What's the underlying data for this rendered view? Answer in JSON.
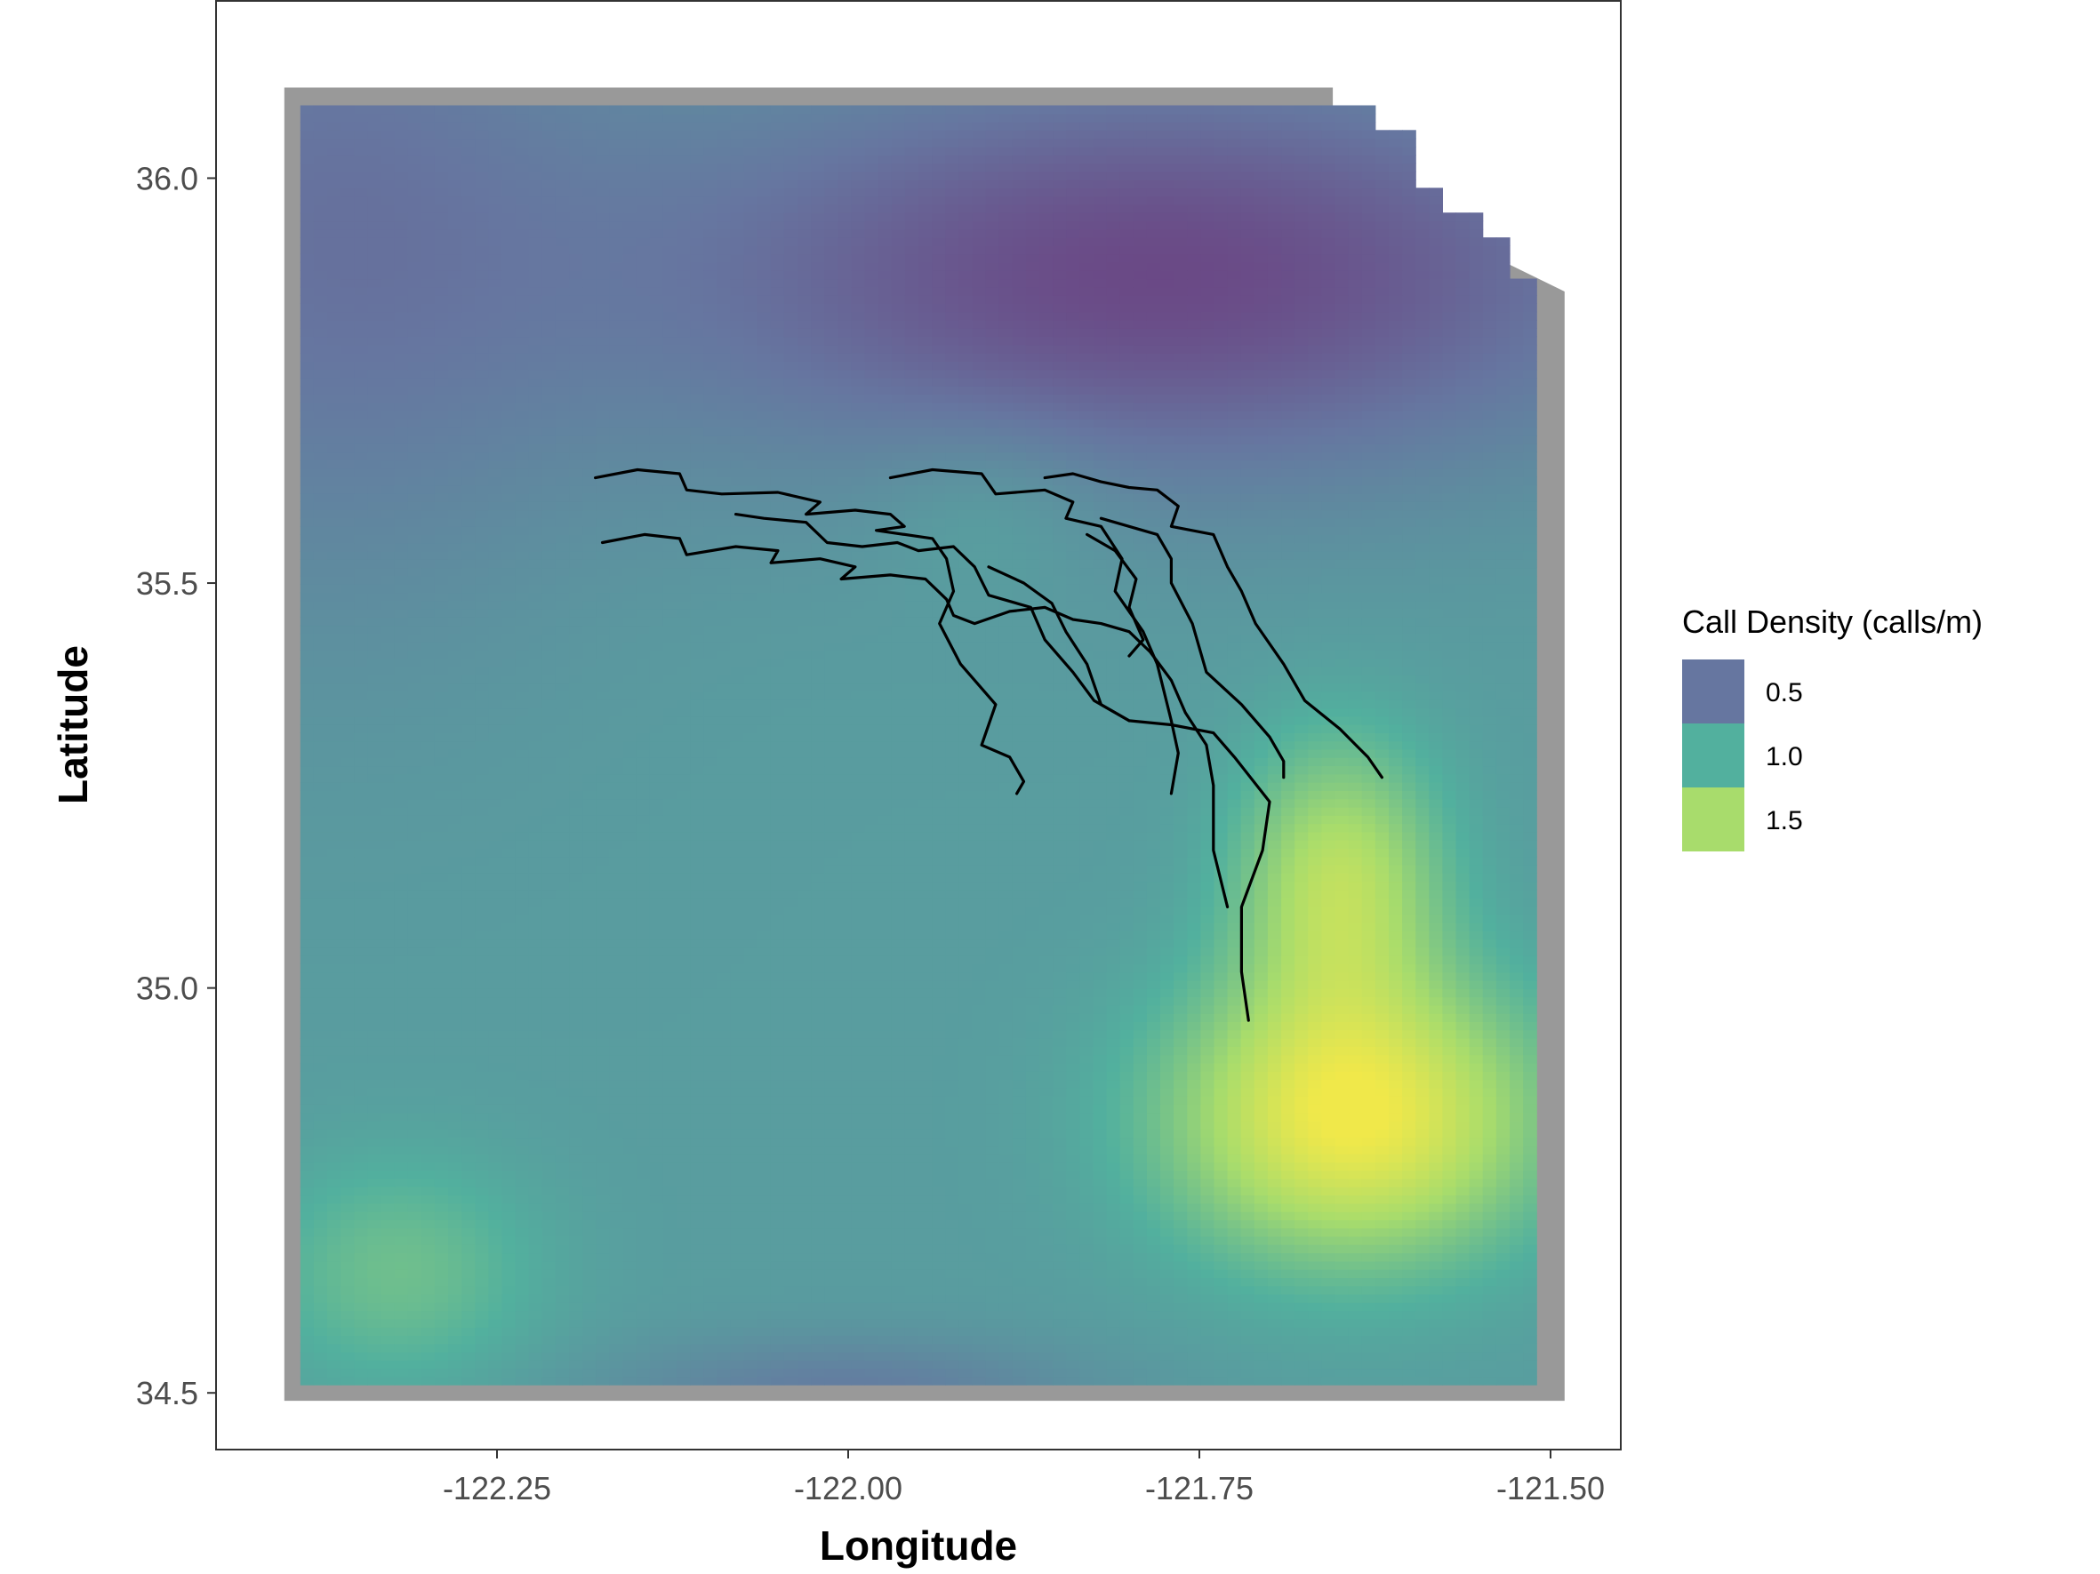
{
  "chart_data": {
    "type": "heatmap",
    "title": "",
    "xlabel": "Longitude",
    "ylabel": "Latitude",
    "xlim": [
      -122.45,
      -121.45
    ],
    "ylim": [
      34.43,
      36.22
    ],
    "x_ticks": [
      -122.25,
      -122.0,
      -121.75,
      -121.5
    ],
    "x_tick_labels": [
      "-122.25",
      "-122.00",
      "-121.75",
      "-121.50"
    ],
    "y_ticks": [
      34.5,
      35.0,
      35.5,
      36.0
    ],
    "y_tick_labels": [
      "34.5",
      "35.0",
      "35.5",
      "36.0"
    ],
    "grid": false,
    "legend": {
      "position": "right",
      "title": "Call Density (calls/m)",
      "entries": [
        {
          "label": "0.5",
          "value": 0.5,
          "color": "#6676a0"
        },
        {
          "label": "1.0",
          "value": 1.0,
          "color": "#52b09e"
        },
        {
          "label": "1.5",
          "value": 1.5,
          "color": "#a8dc6c"
        }
      ]
    },
    "color_scale": {
      "name": "viridis",
      "stops": [
        "#6c3379",
        "#6676a0",
        "#52b09e",
        "#a8dc6c",
        "#f0e84a"
      ],
      "domain": [
        0.1,
        1.9
      ]
    },
    "grid_extent": {
      "lon": [
        -122.39,
        -121.51
      ],
      "lat": [
        34.51,
        36.09
      ]
    },
    "grid_cells": {
      "lon": 92,
      "lat": 155
    },
    "density_field": {
      "base": 0.85,
      "components": [
        {
          "lon": -121.64,
          "lat": 34.84,
          "amp": 1.05,
          "sd_lon": 0.09,
          "sd_lat": 0.12
        },
        {
          "lon": -121.65,
          "lat": 35.13,
          "amp": 0.7,
          "sd_lon": 0.05,
          "sd_lat": 0.12
        },
        {
          "lon": -122.32,
          "lat": 34.65,
          "amp": 0.3,
          "sd_lon": 0.07,
          "sd_lat": 0.1
        },
        {
          "lon": -121.78,
          "lat": 35.88,
          "amp": -0.6,
          "sd_lon": 0.25,
          "sd_lat": 0.18
        },
        {
          "lon": -122.38,
          "lat": 35.95,
          "amp": -0.3,
          "sd_lon": 0.15,
          "sd_lat": 0.35
        },
        {
          "lon": -122.0,
          "lat": 34.5,
          "amp": -0.25,
          "sd_lon": 0.12,
          "sd_lat": 0.05
        },
        {
          "lon": -121.9,
          "lat": 35.6,
          "amp": 0.12,
          "sd_lon": 0.06,
          "sd_lat": 0.08
        }
      ]
    },
    "missing_corner_steps": [
      {
        "lat": 36.09,
        "lon": -121.65
      },
      {
        "lat": 36.06,
        "lon": -121.625
      },
      {
        "lat": 35.99,
        "lon": -121.6
      },
      {
        "lat": 35.96,
        "lon": -121.58
      },
      {
        "lat": 35.93,
        "lon": -121.545
      },
      {
        "lat": 35.88,
        "lon": -121.53
      },
      {
        "lat": 35.83,
        "lon": -121.51
      }
    ],
    "tracks": [
      [
        [
          -122.18,
          35.63
        ],
        [
          -122.15,
          35.64
        ],
        [
          -122.12,
          35.635
        ],
        [
          -122.115,
          35.615
        ],
        [
          -122.09,
          35.61
        ],
        [
          -122.05,
          35.612
        ],
        [
          -122.02,
          35.6
        ],
        [
          -122.03,
          35.585
        ],
        [
          -121.995,
          35.59
        ],
        [
          -121.97,
          35.585
        ],
        [
          -121.96,
          35.57
        ],
        [
          -121.98,
          35.565
        ],
        [
          -121.94,
          35.555
        ],
        [
          -121.93,
          35.53
        ],
        [
          -121.925,
          35.49
        ],
        [
          -121.935,
          35.45
        ],
        [
          -121.92,
          35.4
        ],
        [
          -121.895,
          35.35
        ],
        [
          -121.905,
          35.3
        ],
        [
          -121.885,
          35.285
        ],
        [
          -121.875,
          35.255
        ],
        [
          -121.88,
          35.24
        ]
      ],
      [
        [
          -121.97,
          35.63
        ],
        [
          -121.94,
          35.64
        ],
        [
          -121.905,
          35.635
        ],
        [
          -121.895,
          35.61
        ],
        [
          -121.86,
          35.615
        ],
        [
          -121.84,
          35.6
        ],
        [
          -121.845,
          35.58
        ],
        [
          -121.82,
          35.57
        ],
        [
          -121.805,
          35.53
        ],
        [
          -121.81,
          35.49
        ],
        [
          -121.79,
          35.44
        ],
        [
          -121.78,
          35.4
        ],
        [
          -121.77,
          35.33
        ],
        [
          -121.765,
          35.29
        ],
        [
          -121.77,
          35.24
        ]
      ],
      [
        [
          -121.86,
          35.63
        ],
        [
          -121.84,
          35.635
        ],
        [
          -121.82,
          35.625
        ],
        [
          -121.8,
          35.618
        ],
        [
          -121.78,
          35.615
        ],
        [
          -121.765,
          35.595
        ],
        [
          -121.77,
          35.57
        ],
        [
          -121.74,
          35.56
        ],
        [
          -121.73,
          35.52
        ],
        [
          -121.72,
          35.49
        ],
        [
          -121.71,
          35.45
        ],
        [
          -121.69,
          35.4
        ],
        [
          -121.675,
          35.355
        ],
        [
          -121.65,
          35.32
        ],
        [
          -121.63,
          35.285
        ],
        [
          -121.62,
          35.26
        ]
      ],
      [
        [
          -122.175,
          35.55
        ],
        [
          -122.145,
          35.56
        ],
        [
          -122.12,
          35.555
        ],
        [
          -122.115,
          35.535
        ],
        [
          -122.08,
          35.545
        ],
        [
          -122.05,
          35.54
        ],
        [
          -122.055,
          35.525
        ],
        [
          -122.02,
          35.53
        ],
        [
          -121.995,
          35.52
        ],
        [
          -122.005,
          35.505
        ],
        [
          -121.97,
          35.51
        ],
        [
          -121.945,
          35.505
        ],
        [
          -121.93,
          35.48
        ],
        [
          -121.925,
          35.46
        ],
        [
          -121.91,
          35.45
        ],
        [
          -121.885,
          35.465
        ],
        [
          -121.86,
          35.47
        ],
        [
          -121.84,
          35.455
        ],
        [
          -121.82,
          35.45
        ],
        [
          -121.8,
          35.44
        ],
        [
          -121.785,
          35.415
        ],
        [
          -121.77,
          35.38
        ],
        [
          -121.76,
          35.34
        ],
        [
          -121.745,
          35.3
        ],
        [
          -121.74,
          35.25
        ],
        [
          -121.74,
          35.17
        ],
        [
          -121.73,
          35.1
        ]
      ],
      [
        [
          -122.08,
          35.585
        ],
        [
          -122.06,
          35.58
        ],
        [
          -122.03,
          35.575
        ],
        [
          -122.015,
          35.55
        ],
        [
          -121.99,
          35.545
        ],
        [
          -121.965,
          35.55
        ],
        [
          -121.95,
          35.54
        ],
        [
          -121.925,
          35.545
        ],
        [
          -121.91,
          35.52
        ],
        [
          -121.9,
          35.485
        ],
        [
          -121.87,
          35.47
        ],
        [
          -121.86,
          35.43
        ],
        [
          -121.84,
          35.39
        ],
        [
          -121.825,
          35.355
        ],
        [
          -121.8,
          35.33
        ],
        [
          -121.77,
          35.325
        ],
        [
          -121.74,
          35.315
        ],
        [
          -121.725,
          35.285
        ],
        [
          -121.7,
          35.23
        ],
        [
          -121.705,
          35.17
        ],
        [
          -121.72,
          35.1
        ],
        [
          -121.72,
          35.02
        ],
        [
          -121.715,
          34.96
        ]
      ],
      [
        [
          -121.9,
          35.52
        ],
        [
          -121.875,
          35.5
        ],
        [
          -121.855,
          35.475
        ],
        [
          -121.845,
          35.44
        ],
        [
          -121.83,
          35.4
        ],
        [
          -121.82,
          35.35
        ],
        [
          -121.8,
          35.33
        ]
      ],
      [
        [
          -121.82,
          35.58
        ],
        [
          -121.8,
          35.57
        ],
        [
          -121.78,
          35.56
        ],
        [
          -121.77,
          35.53
        ],
        [
          -121.77,
          35.5
        ],
        [
          -121.755,
          35.45
        ],
        [
          -121.745,
          35.39
        ],
        [
          -121.72,
          35.35
        ],
        [
          -121.7,
          35.31
        ],
        [
          -121.69,
          35.28
        ],
        [
          -121.69,
          35.26
        ]
      ],
      [
        [
          -121.83,
          35.56
        ],
        [
          -121.81,
          35.54
        ],
        [
          -121.795,
          35.505
        ],
        [
          -121.8,
          35.47
        ],
        [
          -121.79,
          35.43
        ],
        [
          -121.8,
          35.41
        ]
      ]
    ]
  }
}
